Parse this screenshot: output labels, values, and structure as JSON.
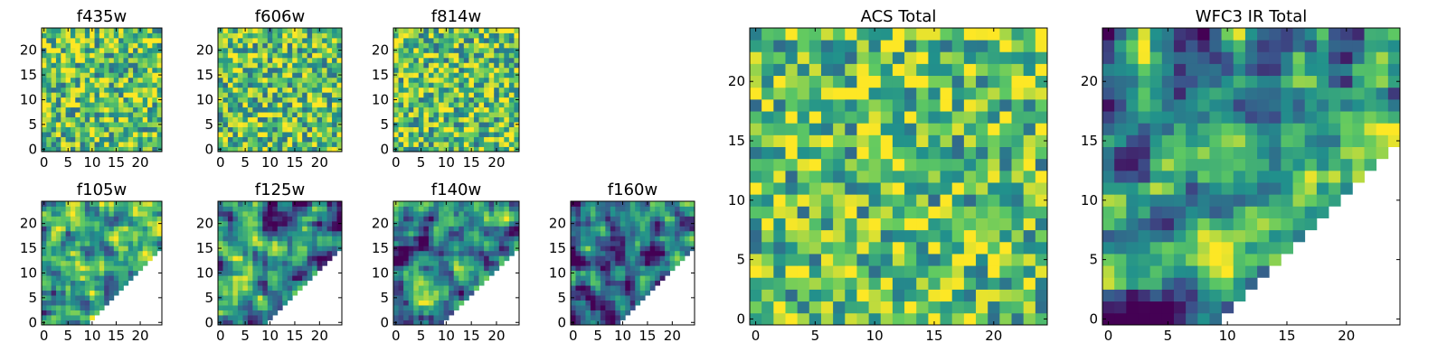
{
  "chart_data": [
    {
      "type": "heatmap",
      "title": "f435w",
      "pattern": "random",
      "mask": "none",
      "seed": 11,
      "grid_size": 25,
      "xlim": [
        -0.5,
        24.5
      ],
      "ylim": [
        -0.5,
        24.5
      ],
      "xticks": [
        0,
        5,
        10,
        15,
        20
      ],
      "yticks": [
        0,
        5,
        10,
        15,
        20
      ]
    },
    {
      "type": "heatmap",
      "title": "f606w",
      "pattern": "random",
      "mask": "none",
      "seed": 23,
      "grid_size": 25,
      "xlim": [
        -0.5,
        24.5
      ],
      "ylim": [
        -0.5,
        24.5
      ],
      "xticks": [
        0,
        5,
        10,
        15,
        20
      ],
      "yticks": [
        0,
        5,
        10,
        15,
        20
      ]
    },
    {
      "type": "heatmap",
      "title": "f814w",
      "pattern": "random",
      "mask": "none",
      "seed": 37,
      "grid_size": 25,
      "xlim": [
        -0.5,
        24.5
      ],
      "ylim": [
        -0.5,
        24.5
      ],
      "xticks": [
        0,
        5,
        10,
        15,
        20
      ],
      "yticks": [
        0,
        5,
        10,
        15,
        20
      ]
    },
    {
      "type": "heatmap",
      "title": "f105w",
      "pattern": "smooth-bright",
      "mask": "triangle-lower-right-blank",
      "seed": 41,
      "grid_size": 25,
      "xlim": [
        -0.5,
        24.5
      ],
      "ylim": [
        -0.5,
        24.5
      ],
      "xticks": [
        0,
        5,
        10,
        15,
        20
      ],
      "yticks": [
        0,
        5,
        10,
        15,
        20
      ]
    },
    {
      "type": "heatmap",
      "title": "f125w",
      "pattern": "smooth",
      "mask": "triangle-lower-right-blank",
      "seed": 53,
      "grid_size": 25,
      "xlim": [
        -0.5,
        24.5
      ],
      "ylim": [
        -0.5,
        24.5
      ],
      "xticks": [
        0,
        5,
        10,
        15,
        20
      ],
      "yticks": [
        0,
        5,
        10,
        15,
        20
      ]
    },
    {
      "type": "heatmap",
      "title": "f140w",
      "pattern": "smooth",
      "mask": "triangle-lower-right-blank",
      "seed": 67,
      "grid_size": 25,
      "xlim": [
        -0.5,
        24.5
      ],
      "ylim": [
        -0.5,
        24.5
      ],
      "xticks": [
        0,
        5,
        10,
        15,
        20
      ],
      "yticks": [
        0,
        5,
        10,
        15,
        20
      ]
    },
    {
      "type": "heatmap",
      "title": "f160w",
      "pattern": "smooth-dark",
      "mask": "triangle-lower-right-blank",
      "seed": 79,
      "grid_size": 25,
      "xlim": [
        -0.5,
        24.5
      ],
      "ylim": [
        -0.5,
        24.5
      ],
      "xticks": [
        0,
        5,
        10,
        15,
        20
      ],
      "yticks": [
        0,
        5,
        10,
        15,
        20
      ]
    },
    {
      "type": "heatmap",
      "title": "ACS Total",
      "pattern": "random",
      "mask": "none",
      "seed": 89,
      "grid_size": 25,
      "xlim": [
        -0.5,
        24.5
      ],
      "ylim": [
        -0.5,
        24.5
      ],
      "xticks": [
        0,
        5,
        10,
        15,
        20
      ],
      "yticks": [
        0,
        5,
        10,
        15,
        20
      ]
    },
    {
      "type": "heatmap",
      "title": "WFC3 IR Total",
      "pattern": "smooth",
      "mask": "triangle-lower-right-blank",
      "seed": 97,
      "grid_size": 25,
      "xlim": [
        -0.5,
        24.5
      ],
      "ylim": [
        -0.5,
        24.5
      ],
      "xticks": [
        0,
        5,
        10,
        15,
        20
      ],
      "yticks": [
        0,
        5,
        10,
        15,
        20
      ]
    }
  ],
  "colormap": "viridis",
  "colors": {
    "viridis_stops": [
      "#440154",
      "#3b528b",
      "#21918c",
      "#5ec962",
      "#fde725"
    ],
    "frame": "#000000",
    "background": "#ffffff"
  }
}
